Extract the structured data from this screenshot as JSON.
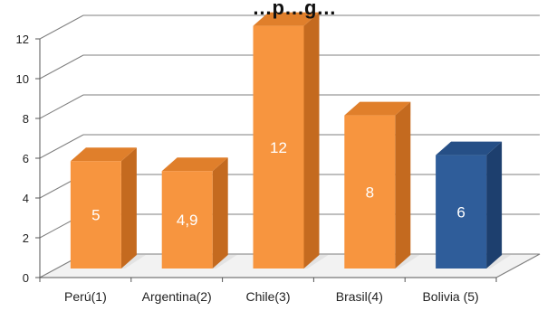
{
  "chart_data": {
    "type": "bar",
    "title": "…p…g…",
    "categories": [
      "Perú(1)",
      "Argentina(2)",
      "Chile(3)",
      "Brasil(4)",
      "Bolivia (5)"
    ],
    "values": [
      5.4,
      4.9,
      12.2,
      7.7,
      5.7
    ],
    "data_labels": [
      "5",
      "4,9",
      "12",
      "8",
      "6"
    ],
    "highlight_category": "Bolivia (5)",
    "ylim": [
      0,
      12
    ],
    "yticks": [
      "0",
      "2",
      "4",
      "6",
      "8",
      "10",
      "12"
    ],
    "grid": true,
    "style": "3d-column",
    "colors": {
      "bar": "#f7953f",
      "bar_side": "#c46a1f",
      "bar_top": "#e07f2b",
      "highlight": "#2f5d9a",
      "highlight_side": "#1d3f6e",
      "highlight_top": "#264f86",
      "grid": "#7f7f7f",
      "floor": "#f2f2f2"
    }
  }
}
